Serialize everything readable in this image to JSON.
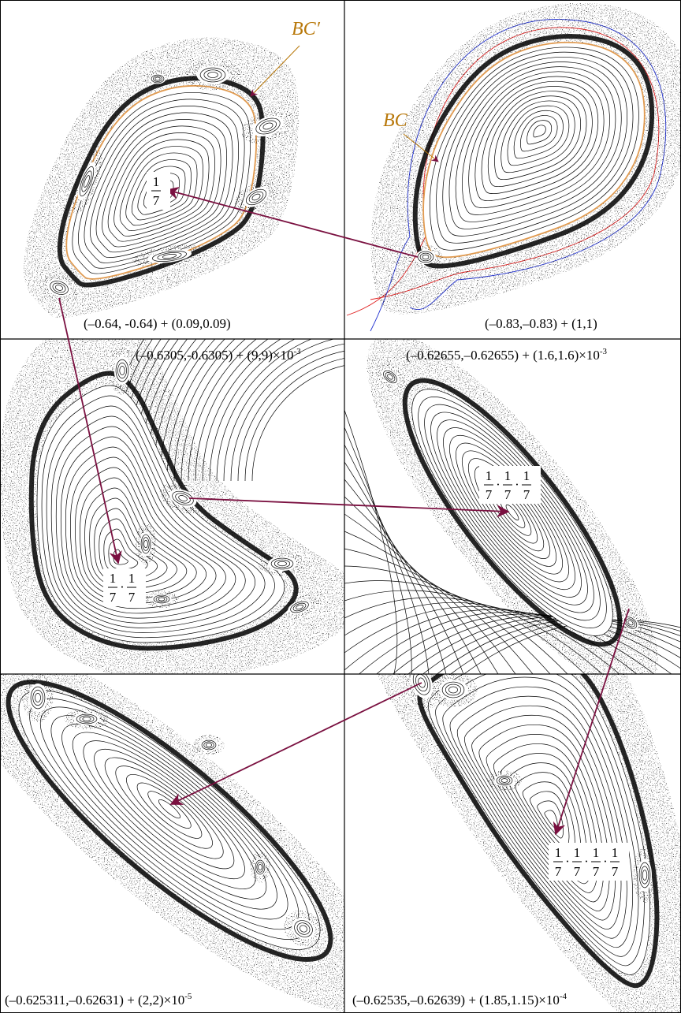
{
  "panels": [
    {
      "caption": {
        "text": "(–0.64, -0.64) + (0.09,0.09)"
      },
      "label": "BC′",
      "fractions": [
        {
          "numerator": "1",
          "denominator": "7"
        }
      ]
    },
    {
      "caption": {
        "text": "(–0.83,–0.83) + (1,1)"
      },
      "label": "BC"
    },
    {
      "caption": {
        "text": "(–0.6305,-0.6305) + (9,9)×10",
        "exponent": "-3"
      },
      "fraction_separator": "·",
      "fractions": [
        {
          "numerator": "1",
          "denominator": "7"
        },
        {
          "numerator": "1",
          "denominator": "7"
        }
      ]
    },
    {
      "caption": {
        "text": "(–0.62655,–0.62655) + (1.6,1.6)×10",
        "exponent": "-3"
      },
      "fraction_separator": "·",
      "fractions": [
        {
          "numerator": "1",
          "denominator": "7"
        },
        {
          "numerator": "1",
          "denominator": "7"
        },
        {
          "numerator": "1",
          "denominator": "7"
        }
      ]
    },
    {
      "caption": {
        "text": "(–0.625311,–0.62631) + (2,2)×10",
        "exponent": "-5"
      }
    },
    {
      "caption": {
        "text": "(–0.62535,–0.62639) + (1.85,1.15)×10",
        "exponent": "-4"
      },
      "fraction_separator": "·",
      "fractions": [
        {
          "numerator": "1",
          "denominator": "7"
        },
        {
          "numerator": "1",
          "denominator": "7"
        },
        {
          "numerator": "1",
          "denominator": "7"
        },
        {
          "numerator": "1",
          "denominator": "7"
        }
      ]
    }
  ]
}
